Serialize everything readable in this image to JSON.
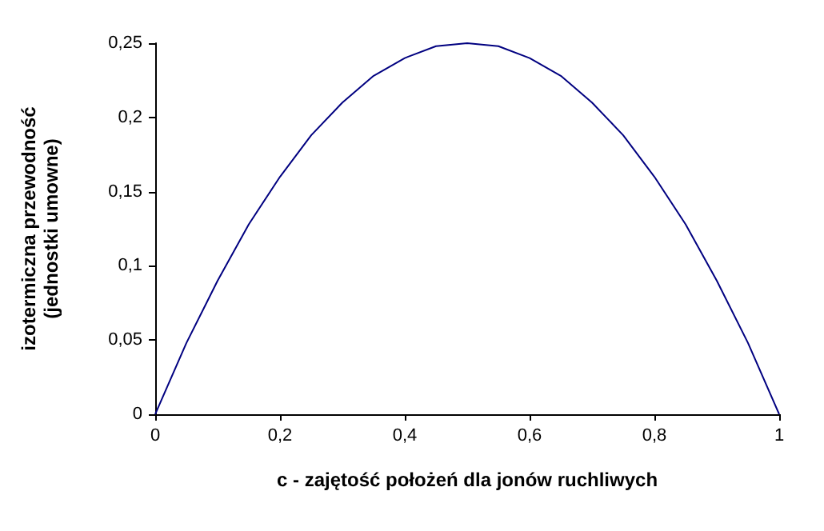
{
  "chart_data": {
    "type": "line",
    "xlabel": "c - zajętość położeń dla jonów ruchliwych",
    "ylabel": "izotermiczna przewodność\n(jednostki umowne)",
    "x": [
      0,
      0.05,
      0.1,
      0.15,
      0.2,
      0.25,
      0.3,
      0.35,
      0.4,
      0.45,
      0.5,
      0.55,
      0.6,
      0.65,
      0.7,
      0.75,
      0.8,
      0.85,
      0.9,
      0.95,
      1
    ],
    "series": [
      {
        "color": "#000080",
        "values": [
          0,
          0.048,
          0.09,
          0.128,
          0.16,
          0.188,
          0.21,
          0.228,
          0.24,
          0.248,
          0.25,
          0.248,
          0.24,
          0.228,
          0.21,
          0.188,
          0.16,
          0.128,
          0.09,
          0.048,
          0
        ]
      }
    ],
    "xlim": [
      0,
      1
    ],
    "xticks": [
      0,
      {
        "value": 0.2,
        "label": "0,2"
      },
      {
        "value": 0.4,
        "label": "0,4"
      },
      {
        "value": 0.6,
        "label": "0,6"
      },
      {
        "value": 0.8,
        "label": "0,8"
      },
      1
    ],
    "ylim": [
      0,
      0.25
    ],
    "yticks": [
      0,
      {
        "value": 0.05,
        "label": "0,05"
      },
      {
        "value": 0.1,
        "label": "0,1"
      },
      {
        "value": 0.15,
        "label": "0,15"
      },
      {
        "value": 0.2,
        "label": "0,2"
      },
      {
        "value": 0.25,
        "label": "0,25"
      }
    ],
    "grid": false,
    "marker": "none",
    "line_style": "solid"
  }
}
